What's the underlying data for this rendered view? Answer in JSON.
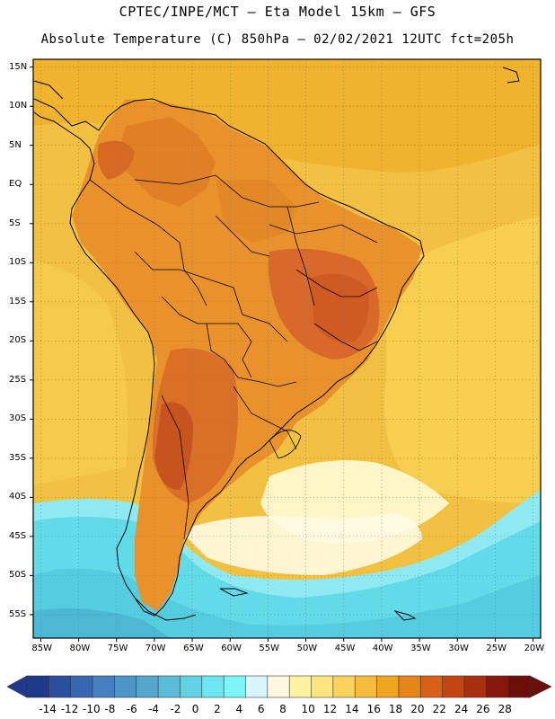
{
  "header": {
    "line1": "CPTEC/INPE/MCT –  Eta Model 15km – GFS",
    "line2": "Absolute Temperature (C) 850hPa – 02/02/2021 12UTC fct=205h"
  },
  "map": {
    "lat_labels": [
      "15N",
      "10N",
      "5N",
      "EQ",
      "5S",
      "10S",
      "15S",
      "20S",
      "25S",
      "30S",
      "35S",
      "40S",
      "45S",
      "50S",
      "55S"
    ],
    "lon_labels": [
      "85W",
      "80W",
      "75W",
      "70W",
      "65W",
      "60W",
      "55W",
      "50W",
      "45W",
      "40W",
      "35W",
      "30W",
      "25W",
      "20W"
    ],
    "extent": {
      "lon_min": -86,
      "lon_max": -19,
      "lat_min": -58,
      "lat_max": 16
    },
    "grid": "dotted",
    "colors": {
      "ocean_warm": "#f0c040",
      "land_hot": "#e07a20",
      "hot_core": "#cd5d20",
      "cold_south": "#55dcec",
      "frame": "#000000"
    }
  },
  "colorbar": {
    "labels": [
      "-14",
      "-12",
      "-10",
      "-8",
      "-6",
      "-4",
      "-2",
      "0",
      "2",
      "4",
      "6",
      "8",
      "10",
      "12",
      "14",
      "16",
      "18",
      "20",
      "22",
      "24",
      "26",
      "28"
    ],
    "colors": [
      "#1f3a8a",
      "#2a4f9e",
      "#3766b0",
      "#4680c0",
      "#4c94c6",
      "#54a6cc",
      "#5bbcd8",
      "#62d2e6",
      "#6ee6f2",
      "#7cf4fa",
      "#d6f6fb",
      "#fff8e1",
      "#fff3a0",
      "#ffe480",
      "#fbd25c",
      "#f4bb3c",
      "#eea520",
      "#e58418",
      "#d86014",
      "#c34512",
      "#a82e10",
      "#86180e",
      "#6b0f0a"
    ],
    "unit_note": ""
  }
}
